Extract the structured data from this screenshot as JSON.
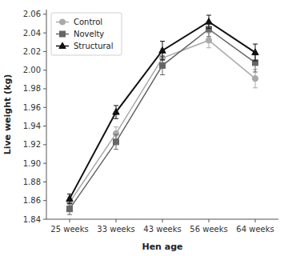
{
  "chart_data": {
    "type": "line",
    "xlabel": "Hen age",
    "ylabel": "Live weight (kg)",
    "categories": [
      "25 weeks",
      "33 weeks",
      "43 weeks",
      "56 weeks",
      "64 weeks"
    ],
    "series": [
      {
        "name": "Control",
        "color": "#aaaaaa",
        "marker": "circle",
        "values": [
          1.858,
          1.932,
          2.013,
          2.032,
          1.991
        ],
        "errors": [
          0.006,
          0.007,
          0.01,
          0.008,
          0.01
        ]
      },
      {
        "name": "Novelty",
        "color": "#666666",
        "marker": "square",
        "values": [
          1.851,
          1.923,
          2.005,
          2.044,
          2.008
        ],
        "errors": [
          0.006,
          0.008,
          0.01,
          0.008,
          0.01
        ]
      },
      {
        "name": "Structural",
        "color": "#111111",
        "marker": "triangle",
        "values": [
          1.862,
          1.955,
          2.021,
          2.052,
          2.019
        ],
        "errors": [
          0.005,
          0.007,
          0.01,
          0.007,
          0.009
        ]
      }
    ],
    "ylim": [
      1.84,
      2.065
    ],
    "yticks": [
      1.84,
      1.86,
      1.88,
      {
        "value": 1.9,
        "label": "1.90"
      },
      1.92,
      1.94,
      1.96,
      1.98,
      {
        "value": 2,
        "label": "2.00"
      },
      2.02,
      2.04,
      2.06
    ],
    "grid": false,
    "legend": "upper left"
  }
}
